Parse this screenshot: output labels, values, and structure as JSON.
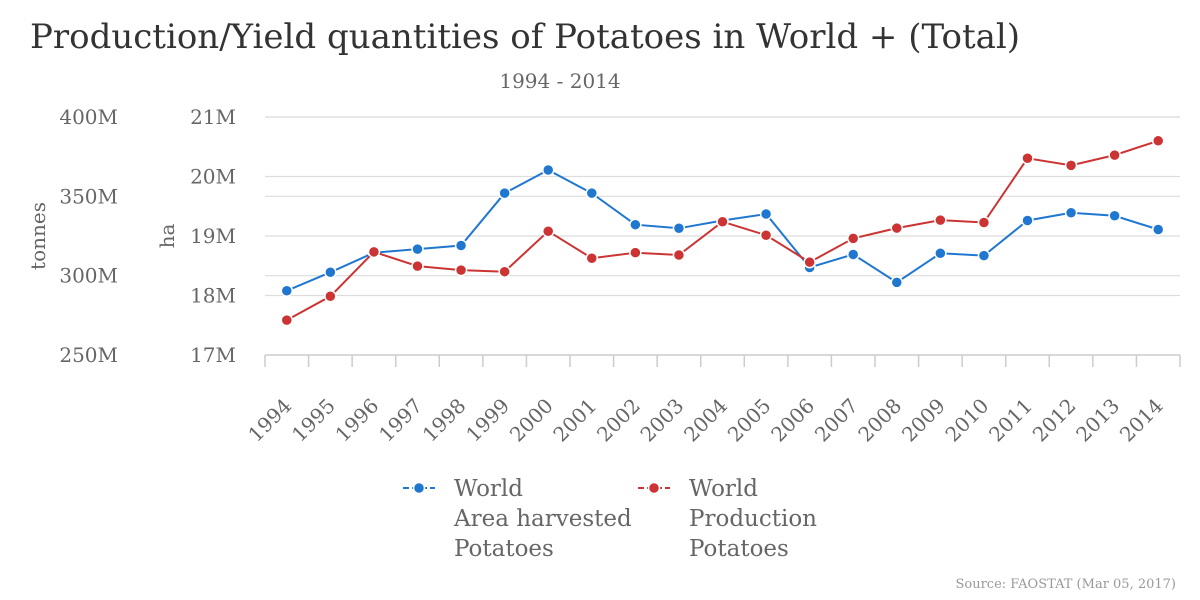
{
  "chart_data": {
    "type": "line",
    "title": "Production/Yield quantities of Potatoes in World + (Total)",
    "subtitle": "1994 - 2014",
    "source": "Source: FAOSTAT (Mar 05, 2017)",
    "x": [
      "1994",
      "1995",
      "1996",
      "1997",
      "1998",
      "1999",
      "2000",
      "2001",
      "2002",
      "2003",
      "2004",
      "2005",
      "2006",
      "2007",
      "2008",
      "2009",
      "2010",
      "2011",
      "2012",
      "2013",
      "2014"
    ],
    "y_left": {
      "label": "tonnes",
      "ticks": [
        "250M",
        "300M",
        "350M",
        "400M"
      ],
      "ylim": [
        250000000,
        400000000
      ]
    },
    "y_right": {
      "label": "ha",
      "ticks": [
        "17M",
        "18M",
        "19M",
        "20M",
        "21M"
      ],
      "ylim": [
        17000000,
        21000000
      ]
    },
    "series": [
      {
        "name": "World Area harvested Potatoes",
        "legend_lines": [
          "World",
          "Area harvested",
          "Potatoes"
        ],
        "axis": "ha",
        "color": "#1f77d0",
        "values": [
          18080000,
          18390000,
          18720000,
          18780000,
          18840000,
          19720000,
          20110000,
          19720000,
          19190000,
          19130000,
          19260000,
          19370000,
          18470000,
          18690000,
          18220000,
          18710000,
          18670000,
          19260000,
          19390000,
          19340000,
          19110000
        ]
      },
      {
        "name": "World Production Potatoes",
        "legend_lines": [
          "World",
          "Production",
          "Potatoes"
        ],
        "axis": "tonnes",
        "color": "#cc3333",
        "values": [
          272000000,
          287000000,
          315000000,
          306000000,
          303500000,
          302500000,
          328000000,
          311000000,
          314500000,
          313000000,
          334000000,
          325500000,
          308500000,
          323500000,
          330000000,
          335000000,
          333500000,
          374000000,
          369500000,
          376000000,
          385000000
        ]
      }
    ],
    "legend_position": "bottom"
  }
}
